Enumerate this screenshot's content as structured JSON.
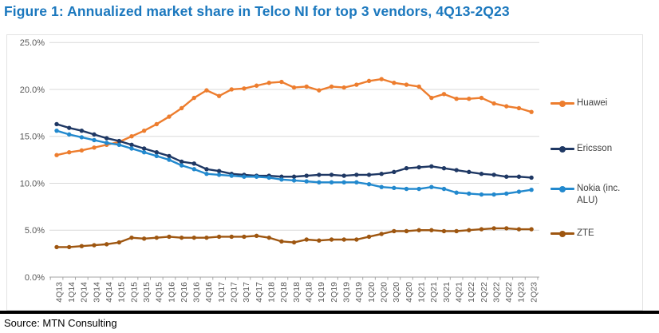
{
  "figure": {
    "title": "Figure 1: Annualized market share in Telco NI for top 3 vendors, 4Q13-2Q23",
    "title_color": "#1B78BE",
    "source": "Source: MTN Consulting"
  },
  "chart_data": {
    "type": "line",
    "title": "Annualized market share in Telco NI for top 3 vendors, 4Q13-2Q23",
    "categories": [
      "4Q13",
      "1Q14",
      "2Q14",
      "3Q14",
      "4Q14",
      "1Q15",
      "2Q15",
      "3Q15",
      "4Q15",
      "1Q16",
      "2Q16",
      "3Q16",
      "4Q16",
      "1Q17",
      "2Q17",
      "3Q17",
      "4Q17",
      "1Q18",
      "2Q18",
      "3Q18",
      "4Q18",
      "1Q19",
      "2Q19",
      "3Q19",
      "4Q19",
      "1Q20",
      "2Q20",
      "3Q20",
      "4Q20",
      "1Q21",
      "2Q21",
      "3Q21",
      "4Q21",
      "1Q22",
      "2Q22",
      "3Q22",
      "4Q22",
      "1Q23",
      "2Q23"
    ],
    "series": [
      {
        "name": "Huawei",
        "color": "#ED7D2E",
        "values": [
          13.0,
          13.3,
          13.5,
          13.8,
          14.1,
          14.4,
          15.0,
          15.6,
          16.3,
          17.1,
          18.0,
          19.1,
          19.9,
          19.3,
          20.0,
          20.1,
          20.4,
          20.7,
          20.8,
          20.2,
          20.3,
          19.9,
          20.3,
          20.2,
          20.5,
          20.9,
          21.1,
          20.7,
          20.5,
          20.3,
          19.1,
          19.5,
          19.0,
          19.0,
          19.1,
          18.5,
          18.2,
          18.0,
          17.6
        ]
      },
      {
        "name": "Ericsson",
        "color": "#1F3864",
        "values": [
          16.3,
          15.9,
          15.6,
          15.2,
          14.8,
          14.5,
          14.1,
          13.7,
          13.3,
          12.9,
          12.3,
          12.1,
          11.5,
          11.3,
          11.0,
          10.9,
          10.8,
          10.8,
          10.7,
          10.7,
          10.8,
          10.9,
          10.9,
          10.8,
          10.9,
          10.9,
          11.0,
          11.2,
          11.6,
          11.7,
          11.8,
          11.6,
          11.4,
          11.2,
          11.0,
          10.9,
          10.7,
          10.7,
          10.6
        ]
      },
      {
        "name": "Nokia (inc. ALU)",
        "color": "#2289CE",
        "values": [
          15.6,
          15.2,
          14.9,
          14.6,
          14.3,
          14.1,
          13.7,
          13.3,
          12.9,
          12.5,
          11.9,
          11.5,
          11.0,
          10.9,
          10.8,
          10.7,
          10.7,
          10.6,
          10.4,
          10.3,
          10.2,
          10.1,
          10.1,
          10.1,
          10.1,
          9.9,
          9.6,
          9.5,
          9.4,
          9.4,
          9.6,
          9.4,
          9.0,
          8.9,
          8.8,
          8.8,
          8.9,
          9.1,
          9.3
        ]
      },
      {
        "name": "ZTE",
        "color": "#9E5610",
        "values": [
          3.2,
          3.2,
          3.3,
          3.4,
          3.5,
          3.7,
          4.2,
          4.1,
          4.2,
          4.3,
          4.2,
          4.2,
          4.2,
          4.3,
          4.3,
          4.3,
          4.4,
          4.2,
          3.8,
          3.7,
          4.0,
          3.9,
          4.0,
          4.0,
          4.0,
          4.3,
          4.6,
          4.9,
          4.9,
          5.0,
          5.0,
          4.9,
          4.9,
          5.0,
          5.1,
          5.2,
          5.2,
          5.1,
          5.1
        ]
      }
    ],
    "xlabel": "",
    "ylabel": "",
    "ylim": [
      0,
      25
    ],
    "yticks": [
      0,
      5,
      10,
      15,
      20,
      25
    ],
    "ytick_labels": [
      "0.0%",
      "5.0%",
      "10.0%",
      "15.0%",
      "20.0%",
      "25.0%"
    ],
    "grid": true,
    "legend_position": "right",
    "x_label_rotation": -90,
    "colors": {
      "gridline": "#D9D9D9",
      "axis": "#A6A6A6",
      "tick_label": "#595959",
      "frame": "#E3E3E3"
    }
  }
}
